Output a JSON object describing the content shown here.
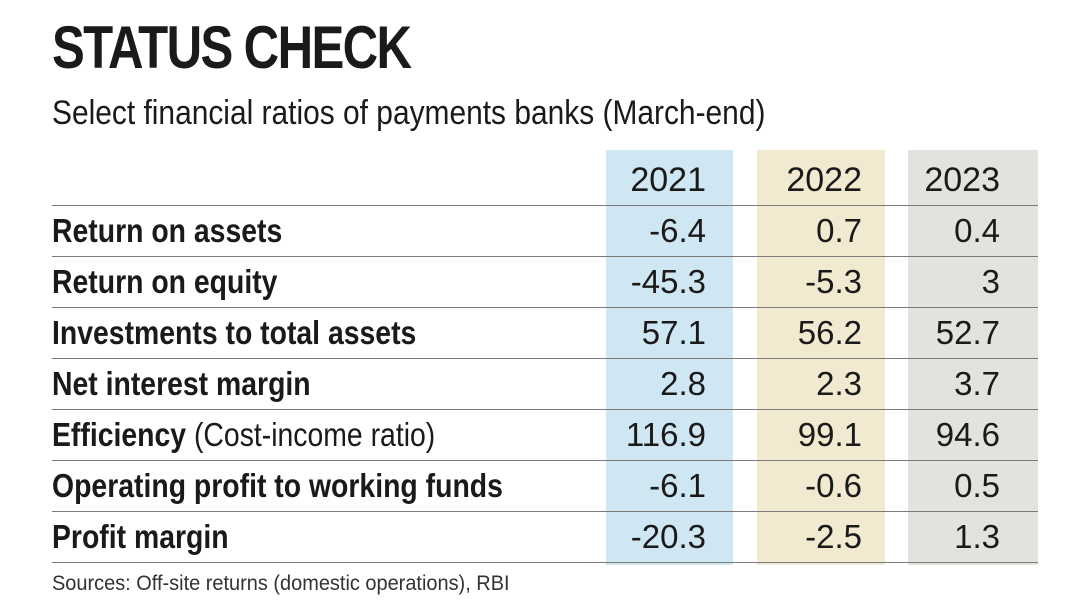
{
  "title": "STATUS CHECK",
  "subtitle": "Select financial ratios of payments banks (March-end)",
  "source": "Sources: Off-site returns (domestic operations), RBI",
  "colors": {
    "col_2021": "#cfe6f3",
    "col_2022": "#f2ead0",
    "col_2023": "#e3e3de"
  },
  "chart_data": {
    "type": "table",
    "title": "STATUS CHECK",
    "subtitle": "Select financial ratios of payments banks (March-end)",
    "columns": [
      "2021",
      "2022",
      "2023"
    ],
    "rows": [
      {
        "label": "Return on assets",
        "note": "",
        "values": [
          "-6.4",
          "0.7",
          "0.4"
        ]
      },
      {
        "label": "Return on equity",
        "note": "",
        "values": [
          "-45.3",
          "-5.3",
          "3"
        ]
      },
      {
        "label": "Investments to total assets",
        "note": "",
        "values": [
          "57.1",
          "56.2",
          "52.7"
        ]
      },
      {
        "label": "Net interest margin",
        "note": "",
        "values": [
          "2.8",
          "2.3",
          "3.7"
        ]
      },
      {
        "label": "Efficiency",
        "note": "(Cost-income ratio)",
        "values": [
          "116.9",
          "99.1",
          "94.6"
        ]
      },
      {
        "label": "Operating profit to working funds",
        "note": "",
        "values": [
          "-6.1",
          "-0.6",
          "0.5"
        ]
      },
      {
        "label": "Profit margin",
        "note": "",
        "values": [
          "-20.3",
          "-2.5",
          "1.3"
        ]
      }
    ]
  }
}
